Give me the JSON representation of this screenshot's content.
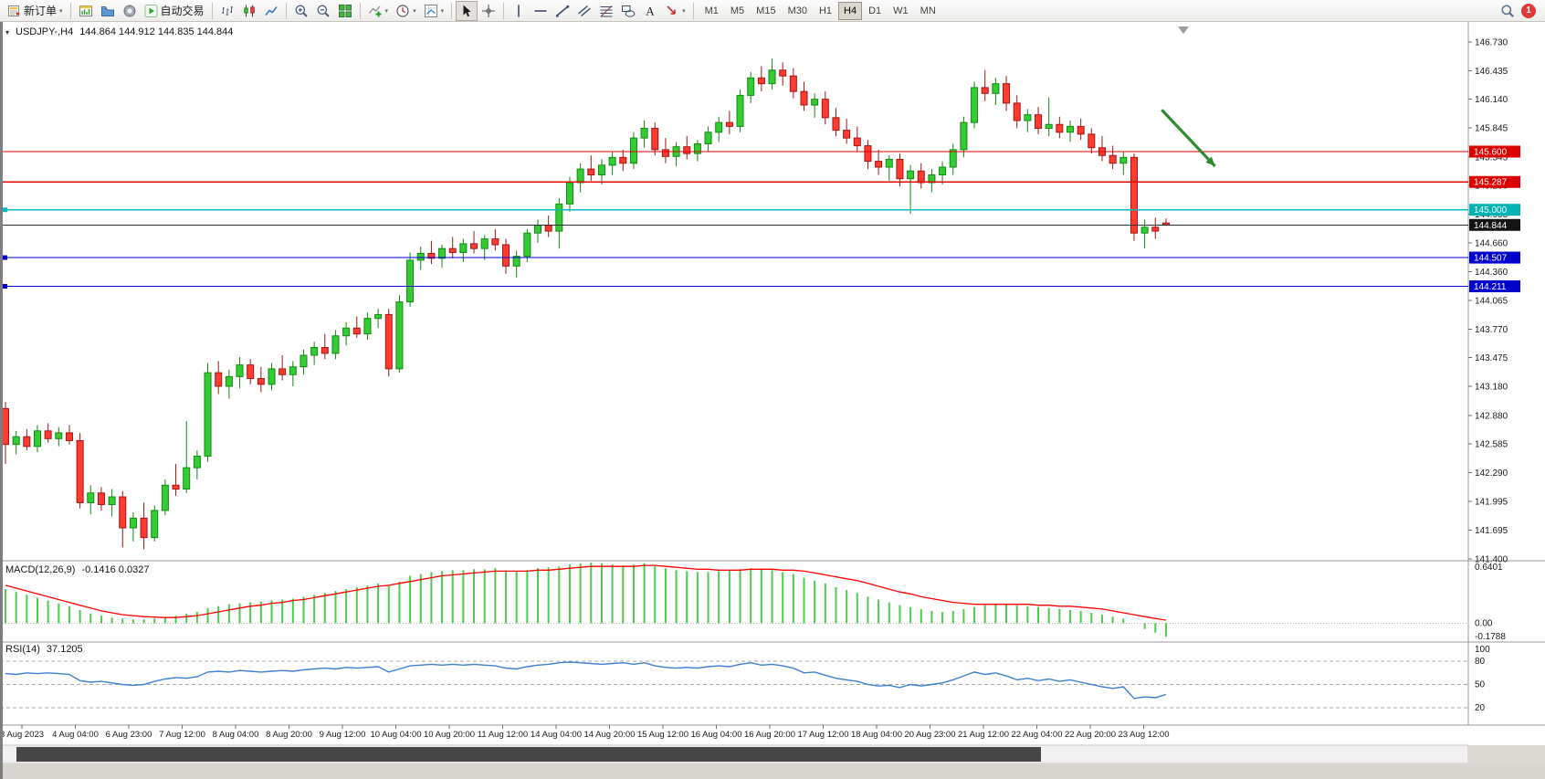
{
  "toolbar": {
    "groups": [
      [
        {
          "name": "new-order-button",
          "icon": "new-order-icon",
          "label": "新订单",
          "dropdown": true
        }
      ],
      [
        {
          "name": "charts-button",
          "icon": "chart-window-icon"
        },
        {
          "name": "profiles-button",
          "icon": "profiles-icon"
        },
        {
          "name": "community-button",
          "icon": "community-icon"
        },
        {
          "name": "autotrading-button",
          "icon": "autotrade-play-icon",
          "label": "自动交易"
        }
      ],
      [
        {
          "name": "bars-button",
          "icon": "bar-chart-icon"
        },
        {
          "name": "candles-button",
          "icon": "candlestick-icon"
        },
        {
          "name": "line-chart-button",
          "icon": "line-chart-icon"
        }
      ],
      [
        {
          "name": "zoom-in-button",
          "icon": "zoom-in-icon"
        },
        {
          "name": "zoom-out-button",
          "icon": "zoom-out-icon"
        },
        {
          "name": "tile-windows-button",
          "icon": "tile-windows-icon"
        }
      ],
      [
        {
          "name": "indicators-button",
          "icon": "indicators-icon",
          "dropdown": true
        },
        {
          "name": "periods-button",
          "icon": "periods-icon",
          "dropdown": true
        },
        {
          "name": "templates-button",
          "icon": "templates-icon",
          "dropdown": true
        }
      ],
      [
        {
          "name": "cursor-button",
          "icon": "cursor-icon",
          "active": true
        },
        {
          "name": "crosshair-button",
          "icon": "crosshair-icon"
        }
      ],
      [
        {
          "name": "vertical-line-button",
          "icon": "vertical-line-icon"
        },
        {
          "name": "horizontal-line-button",
          "icon": "horizontal-line-icon"
        },
        {
          "name": "trendline-button",
          "icon": "trendline-icon"
        },
        {
          "name": "channel-button",
          "icon": "channel-icon"
        },
        {
          "name": "fibonacci-button",
          "icon": "fibonacci-icon"
        },
        {
          "name": "shapes-button",
          "icon": "shapes-icon"
        },
        {
          "name": "text-button",
          "icon": "text-icon"
        },
        {
          "name": "arrows-button",
          "icon": "arrows-icon",
          "dropdown": true
        }
      ]
    ],
    "timeframes": [
      "M1",
      "M5",
      "M15",
      "M30",
      "H1",
      "H4",
      "D1",
      "W1",
      "MN"
    ],
    "active_timeframe": "H4",
    "notification_count": "1"
  },
  "chart": {
    "title_symbol": "USDJPY-,H4",
    "title_ohlc": "144.864 144.912 144.835 144.844"
  },
  "indicators": {
    "macd": {
      "label": "MACD(12,26,9)",
      "values": "-0.1416 0.0327",
      "axis": [
        "0.6401",
        "0.00",
        "-0.1788"
      ]
    },
    "rsi": {
      "label": "RSI(14)",
      "value": "37.1205",
      "axis": [
        "100",
        "80",
        "50",
        "20"
      ]
    }
  },
  "price_axis": {
    "ticks": [
      "146.730",
      "146.435",
      "146.140",
      "145.845",
      "145.545",
      "145.250",
      "144.955",
      "144.660",
      "144.360",
      "144.065",
      "143.770",
      "143.475",
      "143.180",
      "142.880",
      "142.585",
      "142.290",
      "141.995",
      "141.695",
      "141.400"
    ],
    "badges": [
      {
        "value": "145.600",
        "color": "#dd0000"
      },
      {
        "value": "145.287",
        "color": "#dd0000"
      },
      {
        "value": "145.000",
        "color": "#00b3b3"
      },
      {
        "value": "144.844",
        "color": "#141414"
      },
      {
        "value": "144.507",
        "color": "#0000cc"
      },
      {
        "value": "144.211",
        "color": "#0000cc"
      }
    ]
  },
  "date_axis": {
    "labels": [
      "3 Aug 2023",
      "4 Aug 04:00",
      "6 Aug 23:00",
      "7 Aug 12:00",
      "8 Aug 04:00",
      "8 Aug 20:00",
      "9 Aug 12:00",
      "10 Aug 04:00",
      "10 Aug 20:00",
      "11 Aug 12:00",
      "14 Aug 04:00",
      "14 Aug 20:00",
      "15 Aug 12:00",
      "16 Aug 04:00",
      "16 Aug 20:00",
      "17 Aug 12:00",
      "18 Aug 04:00",
      "20 Aug 23:00",
      "21 Aug 12:00",
      "22 Aug 04:00",
      "22 Aug 20:00",
      "23 Aug 12:00"
    ]
  },
  "chart_data": {
    "type": "candlestick",
    "symbol": "USDJPY",
    "period": "H4",
    "price_range": {
      "max": 146.73,
      "min": 141.4
    },
    "style": {
      "up_fill": "#33cc33",
      "up_stroke": "#128a12",
      "down_fill": "#ff3b30",
      "down_stroke": "#a31515",
      "current_price_color": "#2b2b2b",
      "macd_histogram": "#4ecb4e",
      "macd_signal": "#ff0000",
      "rsi_line": "#3f7fd0"
    },
    "levels": [
      {
        "price": 145.6,
        "color": "#e00000",
        "markers": false
      },
      {
        "price": 145.287,
        "color": "#e00000",
        "markers": false
      },
      {
        "price": 145.0,
        "color": "#00bdbd",
        "markers": true
      },
      {
        "price": 144.507,
        "color": "#0000d6",
        "markers": true
      },
      {
        "price": 144.211,
        "color": "#0000d6",
        "markers": true
      }
    ],
    "current_price": 144.844,
    "arrow": {
      "color": "#2e8b2e",
      "from": {
        "bar": 108.6,
        "price": 146.03
      },
      "to": {
        "bar": 113.6,
        "price": 145.45
      }
    },
    "candles": [
      [
        142.95,
        143.02,
        142.38,
        142.58
      ],
      [
        142.58,
        142.72,
        142.48,
        142.66
      ],
      [
        142.66,
        142.74,
        142.52,
        142.56
      ],
      [
        142.56,
        142.78,
        142.5,
        142.72
      ],
      [
        142.72,
        142.8,
        142.6,
        142.64
      ],
      [
        142.64,
        142.76,
        142.56,
        142.7
      ],
      [
        142.7,
        142.78,
        142.58,
        142.62
      ],
      [
        142.62,
        142.7,
        141.92,
        141.98
      ],
      [
        141.98,
        142.16,
        141.86,
        142.08
      ],
      [
        142.08,
        142.14,
        141.9,
        141.96
      ],
      [
        141.96,
        142.12,
        141.84,
        142.04
      ],
      [
        142.04,
        142.1,
        141.52,
        141.72
      ],
      [
        141.72,
        141.88,
        141.58,
        141.82
      ],
      [
        141.82,
        141.98,
        141.5,
        141.62
      ],
      [
        141.62,
        141.95,
        141.58,
        141.9
      ],
      [
        141.9,
        142.22,
        141.85,
        142.16
      ],
      [
        142.16,
        142.38,
        142.05,
        142.12
      ],
      [
        142.12,
        142.82,
        142.08,
        142.34
      ],
      [
        142.34,
        142.52,
        142.22,
        142.46
      ],
      [
        142.46,
        143.42,
        142.4,
        143.32
      ],
      [
        143.32,
        143.44,
        143.1,
        143.18
      ],
      [
        143.18,
        143.35,
        143.05,
        143.28
      ],
      [
        143.28,
        143.48,
        143.16,
        143.4
      ],
      [
        143.4,
        143.46,
        143.2,
        143.26
      ],
      [
        143.26,
        143.38,
        143.12,
        143.2
      ],
      [
        143.2,
        143.42,
        143.14,
        143.36
      ],
      [
        143.36,
        143.5,
        143.24,
        143.3
      ],
      [
        143.3,
        143.44,
        143.18,
        143.38
      ],
      [
        143.38,
        143.56,
        143.3,
        143.5
      ],
      [
        143.5,
        143.64,
        143.4,
        143.58
      ],
      [
        143.58,
        143.72,
        143.46,
        143.52
      ],
      [
        143.52,
        143.76,
        143.46,
        143.7
      ],
      [
        143.7,
        143.84,
        143.6,
        143.78
      ],
      [
        143.78,
        143.9,
        143.68,
        143.72
      ],
      [
        143.72,
        143.94,
        143.66,
        143.88
      ],
      [
        143.88,
        143.98,
        143.78,
        143.92
      ],
      [
        143.92,
        143.98,
        143.28,
        143.36
      ],
      [
        143.36,
        144.12,
        143.32,
        144.05
      ],
      [
        144.05,
        144.56,
        144.0,
        144.48
      ],
      [
        144.48,
        144.62,
        144.38,
        144.55
      ],
      [
        144.55,
        144.68,
        144.44,
        144.5
      ],
      [
        144.5,
        144.64,
        144.4,
        144.6
      ],
      [
        144.6,
        144.72,
        144.5,
        144.56
      ],
      [
        144.56,
        144.7,
        144.46,
        144.65
      ],
      [
        144.65,
        144.78,
        144.55,
        144.6
      ],
      [
        144.6,
        144.74,
        144.48,
        144.7
      ],
      [
        144.7,
        144.8,
        144.58,
        144.64
      ],
      [
        144.64,
        144.7,
        144.34,
        144.42
      ],
      [
        144.42,
        144.58,
        144.3,
        144.52
      ],
      [
        144.52,
        144.8,
        144.46,
        144.76
      ],
      [
        144.76,
        144.9,
        144.66,
        144.84
      ],
      [
        144.84,
        144.94,
        144.72,
        144.78
      ],
      [
        144.78,
        145.12,
        144.6,
        145.06
      ],
      [
        145.06,
        145.34,
        144.98,
        145.28
      ],
      [
        145.28,
        145.48,
        145.18,
        145.42
      ],
      [
        145.42,
        145.56,
        145.3,
        145.36
      ],
      [
        145.36,
        145.52,
        145.26,
        145.46
      ],
      [
        145.46,
        145.6,
        145.36,
        145.54
      ],
      [
        145.54,
        145.62,
        145.4,
        145.48
      ],
      [
        145.48,
        145.8,
        145.42,
        145.74
      ],
      [
        145.74,
        145.92,
        145.64,
        145.84
      ],
      [
        145.84,
        145.9,
        145.56,
        145.62
      ],
      [
        145.62,
        145.74,
        145.48,
        145.55
      ],
      [
        145.55,
        145.7,
        145.45,
        145.65
      ],
      [
        145.65,
        145.76,
        145.52,
        145.58
      ],
      [
        145.58,
        145.72,
        145.5,
        145.68
      ],
      [
        145.68,
        145.86,
        145.6,
        145.8
      ],
      [
        145.8,
        145.96,
        145.7,
        145.9
      ],
      [
        145.9,
        146.02,
        145.78,
        145.86
      ],
      [
        145.86,
        146.24,
        145.8,
        146.18
      ],
      [
        146.18,
        146.42,
        146.1,
        146.36
      ],
      [
        146.36,
        146.48,
        146.22,
        146.3
      ],
      [
        146.3,
        146.56,
        146.24,
        146.44
      ],
      [
        146.44,
        146.52,
        146.28,
        146.38
      ],
      [
        146.38,
        146.46,
        146.15,
        146.22
      ],
      [
        146.22,
        146.32,
        146.02,
        146.08
      ],
      [
        146.08,
        146.2,
        145.95,
        146.14
      ],
      [
        146.14,
        146.22,
        145.88,
        145.95
      ],
      [
        145.95,
        146.05,
        145.76,
        145.82
      ],
      [
        145.82,
        145.94,
        145.68,
        145.74
      ],
      [
        145.74,
        145.86,
        145.6,
        145.66
      ],
      [
        145.66,
        145.72,
        145.42,
        145.5
      ],
      [
        145.5,
        145.62,
        145.36,
        145.44
      ],
      [
        145.44,
        145.56,
        145.3,
        145.52
      ],
      [
        145.52,
        145.58,
        145.24,
        145.32
      ],
      [
        145.32,
        145.46,
        144.96,
        145.4
      ],
      [
        145.4,
        145.48,
        145.22,
        145.28
      ],
      [
        145.28,
        145.42,
        145.18,
        145.36
      ],
      [
        145.36,
        145.5,
        145.26,
        145.44
      ],
      [
        145.44,
        145.68,
        145.36,
        145.62
      ],
      [
        145.62,
        145.96,
        145.54,
        145.9
      ],
      [
        145.9,
        146.32,
        145.84,
        146.26
      ],
      [
        146.26,
        146.44,
        146.12,
        146.2
      ],
      [
        146.2,
        146.36,
        146.08,
        146.3
      ],
      [
        146.3,
        146.38,
        146.02,
        146.1
      ],
      [
        146.1,
        146.18,
        145.84,
        145.92
      ],
      [
        145.92,
        146.04,
        145.8,
        145.98
      ],
      [
        145.98,
        146.06,
        145.78,
        145.84
      ],
      [
        145.84,
        146.16,
        145.76,
        145.88
      ],
      [
        145.88,
        145.96,
        145.74,
        145.8
      ],
      [
        145.8,
        145.92,
        145.7,
        145.86
      ],
      [
        145.86,
        145.94,
        145.72,
        145.78
      ],
      [
        145.78,
        145.84,
        145.58,
        145.64
      ],
      [
        145.64,
        145.76,
        145.5,
        145.56
      ],
      [
        145.56,
        145.66,
        145.42,
        145.48
      ],
      [
        145.48,
        145.6,
        145.36,
        145.54
      ],
      [
        145.54,
        145.58,
        144.68,
        144.76
      ],
      [
        144.76,
        144.9,
        144.6,
        144.82
      ],
      [
        144.82,
        144.92,
        144.7,
        144.78
      ],
      [
        144.864,
        144.912,
        144.835,
        144.844
      ]
    ],
    "macd": {
      "range": {
        "max": 0.6401,
        "min": -0.1788
      },
      "histogram": [
        0.36,
        0.33,
        0.3,
        0.27,
        0.24,
        0.21,
        0.18,
        0.14,
        0.1,
        0.08,
        0.06,
        0.05,
        0.04,
        0.04,
        0.05,
        0.06,
        0.08,
        0.1,
        0.12,
        0.16,
        0.18,
        0.2,
        0.21,
        0.22,
        0.23,
        0.24,
        0.25,
        0.26,
        0.28,
        0.3,
        0.32,
        0.34,
        0.36,
        0.38,
        0.4,
        0.42,
        0.4,
        0.44,
        0.5,
        0.52,
        0.54,
        0.55,
        0.56,
        0.56,
        0.57,
        0.57,
        0.58,
        0.56,
        0.55,
        0.56,
        0.58,
        0.59,
        0.6,
        0.62,
        0.63,
        0.64,
        0.63,
        0.62,
        0.61,
        0.62,
        0.63,
        0.6,
        0.58,
        0.56,
        0.55,
        0.54,
        0.54,
        0.55,
        0.56,
        0.57,
        0.58,
        0.57,
        0.56,
        0.54,
        0.52,
        0.48,
        0.45,
        0.42,
        0.38,
        0.35,
        0.32,
        0.28,
        0.25,
        0.22,
        0.19,
        0.17,
        0.15,
        0.13,
        0.12,
        0.13,
        0.15,
        0.17,
        0.19,
        0.2,
        0.2,
        0.19,
        0.18,
        0.17,
        0.16,
        0.15,
        0.14,
        0.13,
        0.11,
        0.09,
        0.07,
        0.05,
        0.0,
        -0.06,
        -0.1,
        -0.1416
      ],
      "signal": [
        0.4,
        0.37,
        0.34,
        0.31,
        0.28,
        0.25,
        0.22,
        0.19,
        0.16,
        0.13,
        0.11,
        0.09,
        0.08,
        0.07,
        0.065,
        0.06,
        0.06,
        0.07,
        0.08,
        0.1,
        0.12,
        0.14,
        0.16,
        0.18,
        0.19,
        0.21,
        0.22,
        0.24,
        0.25,
        0.27,
        0.29,
        0.31,
        0.33,
        0.35,
        0.37,
        0.39,
        0.4,
        0.42,
        0.44,
        0.46,
        0.48,
        0.5,
        0.51,
        0.52,
        0.53,
        0.54,
        0.55,
        0.55,
        0.55,
        0.55,
        0.56,
        0.56,
        0.57,
        0.58,
        0.59,
        0.6,
        0.6,
        0.6,
        0.6,
        0.6,
        0.61,
        0.61,
        0.6,
        0.59,
        0.58,
        0.57,
        0.57,
        0.56,
        0.56,
        0.56,
        0.57,
        0.57,
        0.57,
        0.56,
        0.56,
        0.55,
        0.53,
        0.51,
        0.49,
        0.47,
        0.45,
        0.42,
        0.39,
        0.36,
        0.33,
        0.31,
        0.28,
        0.26,
        0.24,
        0.22,
        0.21,
        0.2,
        0.2,
        0.2,
        0.2,
        0.2,
        0.2,
        0.19,
        0.19,
        0.18,
        0.18,
        0.17,
        0.16,
        0.15,
        0.13,
        0.11,
        0.09,
        0.07,
        0.05,
        0.0327
      ]
    },
    "rsi": {
      "range": {
        "max": 100,
        "min": 0
      },
      "levels": [
        80,
        50,
        20
      ],
      "values": [
        64,
        63,
        65,
        64,
        65,
        64,
        63,
        55,
        53,
        54,
        52,
        50,
        49,
        50,
        54,
        57,
        59,
        58,
        60,
        66,
        67,
        66,
        68,
        67,
        66,
        67,
        68,
        67,
        69,
        70,
        71,
        70,
        72,
        71,
        72,
        73,
        66,
        70,
        74,
        75,
        76,
        75,
        76,
        75,
        76,
        75,
        74,
        71,
        70,
        73,
        75,
        76,
        78,
        79,
        78,
        77,
        76,
        77,
        78,
        76,
        78,
        74,
        72,
        71,
        72,
        71,
        73,
        74,
        73,
        76,
        78,
        75,
        76,
        74,
        71,
        65,
        66,
        62,
        58,
        56,
        54,
        50,
        48,
        49,
        46,
        50,
        48,
        50,
        52,
        56,
        61,
        66,
        63,
        65,
        61,
        56,
        58,
        55,
        57,
        54,
        56,
        53,
        50,
        47,
        45,
        47,
        32,
        34,
        33,
        37.12
      ]
    }
  }
}
